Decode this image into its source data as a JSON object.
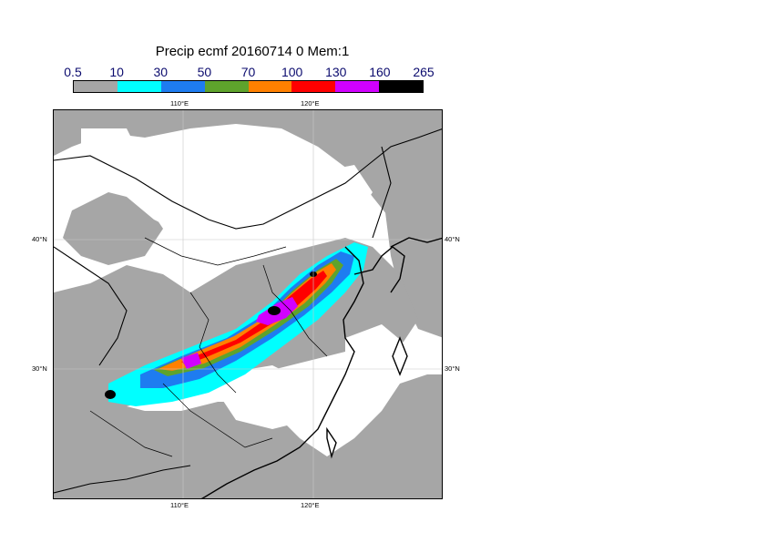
{
  "title": "Precip ecmf 20160714 0 Mem:1",
  "colorbar": {
    "labels": [
      "0.5",
      "10",
      "30",
      "50",
      "70",
      "100",
      "130",
      "160",
      "265"
    ],
    "colors": [
      "#a6a6a6",
      "#00ffff",
      "#1e7cf0",
      "#5ea32c",
      "#ff8000",
      "#ff0000",
      "#d100ff",
      "#000000"
    ]
  },
  "axes": {
    "lon_top": [
      "110°E",
      "120°E"
    ],
    "lon_bottom": [
      "110°E",
      "120°E"
    ],
    "lat_left": [
      "40°N",
      "30°N"
    ],
    "lat_right": [
      "40°N",
      "30°N"
    ]
  }
}
